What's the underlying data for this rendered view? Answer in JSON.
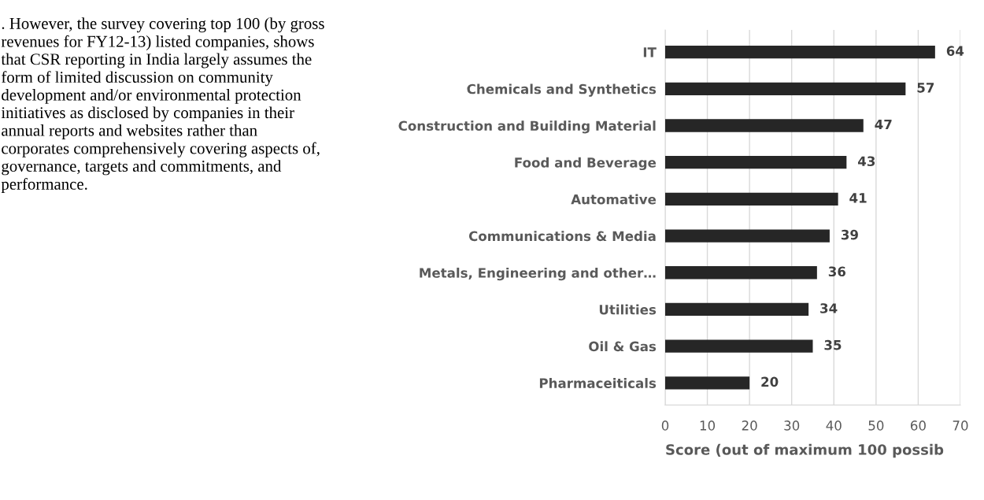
{
  "chart_data": {
    "type": "bar",
    "orientation": "horizontal",
    "xlabel": "Score (out of maximum 100 possib",
    "categories": [
      "IT",
      "Chemicals and Synthetics",
      "Construction and Building Material",
      "Food and Beverage",
      "Automative",
      "Communications & Media",
      "Metals, Engineering and other…",
      "Utilities",
      "Oil & Gas",
      "Pharmaceiticals"
    ],
    "values": [
      64,
      57,
      47,
      43,
      41,
      39,
      36,
      34,
      35,
      20
    ],
    "color": "#262626",
    "xlim": [
      0,
      70
    ],
    "xticks": [
      0,
      10,
      20,
      30,
      40,
      50,
      60,
      70
    ],
    "grid": "x",
    "data_labels": true,
    "annotations": [
      ". However, the survey covering top 100 (by gross revenues for FY12-13) listed companies, shows that CSR reporting in India largely assumes the form of limited discussion on community development and/or environmental protection initiatives as disclosed by companies in their annual reports and websites rather than corporates comprehensively covering aspects of, governance, targets and commitments, and performance."
    ]
  }
}
